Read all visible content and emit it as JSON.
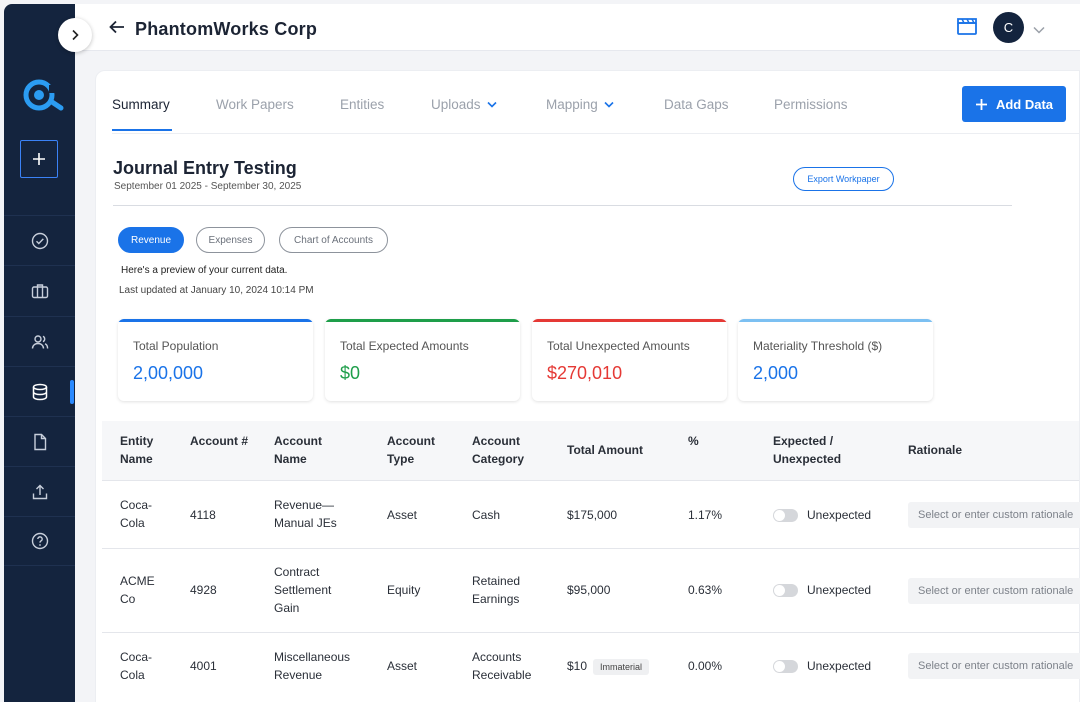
{
  "header": {
    "title": "PhantomWorks Corp",
    "avatar_initial": "C"
  },
  "sidebar": {
    "items": [
      {
        "name": "tasks",
        "icon": "check-circle-icon"
      },
      {
        "name": "briefcase",
        "icon": "briefcase-icon"
      },
      {
        "name": "users",
        "icon": "users-icon"
      },
      {
        "name": "data",
        "icon": "database-icon",
        "active": true
      },
      {
        "name": "documents",
        "icon": "document-icon"
      },
      {
        "name": "upload",
        "icon": "upload-icon"
      },
      {
        "name": "help",
        "icon": "help-icon"
      }
    ]
  },
  "tabs": [
    {
      "label": "Summary",
      "active": true
    },
    {
      "label": "Work Papers"
    },
    {
      "label": "Entities"
    },
    {
      "label": "Uploads",
      "dropdown": true
    },
    {
      "label": "Mapping",
      "dropdown": true
    },
    {
      "label": "Data Gaps"
    },
    {
      "label": "Permissions"
    }
  ],
  "add_data_label": "Add Data",
  "page": {
    "title": "Journal Entry Testing",
    "date_range": "September 01 2025 - September 30, 2025",
    "export_label": "Export Workpaper",
    "preview_text": "Here's a preview of your current data.",
    "updated_text": "Last updated at January 10, 2024 10:14 PM"
  },
  "filters": [
    "Revenue",
    "Expenses",
    "Chart of Accounts"
  ],
  "stats": [
    {
      "label": "Total Population",
      "value": "2,00,000",
      "color": "#1a73e8"
    },
    {
      "label": "Total Expected Amounts",
      "value": "$0",
      "color": "#1e9e4a"
    },
    {
      "label": "Total Unexpected Amounts",
      "value": "$270,010",
      "color": "#e53935"
    },
    {
      "label": "Materiality Threshold ($)",
      "value": "2,000",
      "color": "#7cc0f2"
    }
  ],
  "table": {
    "headers": {
      "entity": "Entity Name",
      "account_no": "Account #",
      "account_name": "Account Name",
      "account_type": "Account Type",
      "account_category": "Account Category",
      "total_amount": "Total Amount",
      "percent": "%",
      "expected": "Expected / Unexpected",
      "rationale": "Rationale"
    },
    "rows": [
      {
        "entity": "Coca-Cola",
        "account_no": "4118",
        "account_name": "Revenue—Manual JEs",
        "account_type": "Asset",
        "account_category": "Cash",
        "total_amount": "$175,000",
        "badge": "",
        "percent": "1.17%",
        "status": "Unexpected",
        "rationale_placeholder": "Select or enter custom rationale"
      },
      {
        "entity": "ACME Co",
        "account_no": "4928",
        "account_name": "Contract Settlement Gain",
        "account_type": "Equity",
        "account_category": "Retained Earnings",
        "total_amount": "$95,000",
        "badge": "",
        "percent": "0.63%",
        "status": "Unexpected",
        "rationale_placeholder": "Select or enter custom rationale"
      },
      {
        "entity": "Coca-Cola",
        "account_no": "4001",
        "account_name": "Miscellaneous Revenue",
        "account_type": "Asset",
        "account_category": "Accounts Receivable",
        "total_amount": "$10",
        "badge": "Immaterial",
        "percent": "0.00%",
        "status": "Unexpected",
        "rationale_placeholder": "Select or enter custom rationale"
      }
    ]
  }
}
